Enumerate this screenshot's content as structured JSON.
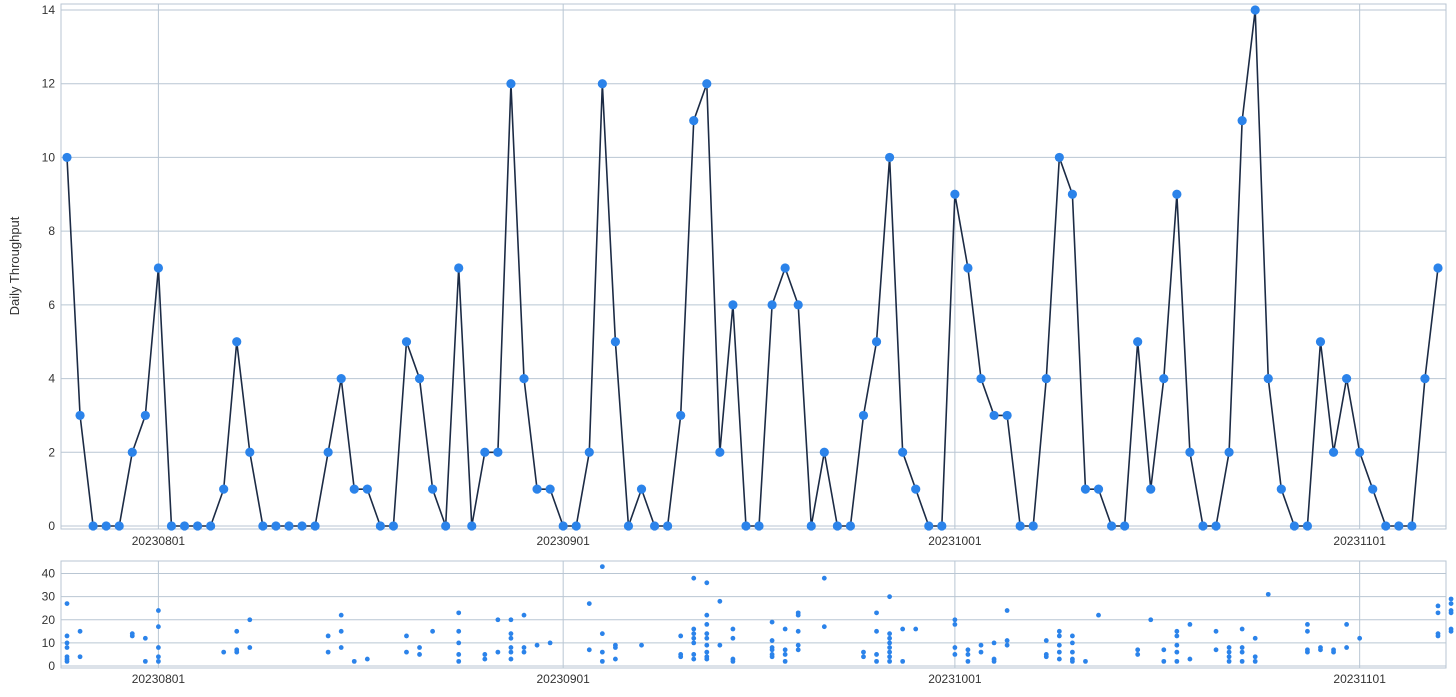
{
  "chart_data": [
    {
      "type": "line",
      "ylabel": "Daily Throughput",
      "xlabel": "",
      "ylim": [
        0,
        14
      ],
      "yticks": [
        0,
        2,
        4,
        6,
        8,
        10,
        12,
        14
      ],
      "xticks": [
        "20230801",
        "20230901",
        "20231001",
        "20231101"
      ],
      "grid": true,
      "x_start": "20230725",
      "x_end": "20231107",
      "series": [
        {
          "values": [
            10,
            3,
            0,
            0,
            0,
            2,
            3,
            7,
            0,
            0,
            0,
            0,
            1,
            5,
            2,
            0,
            0,
            0,
            0,
            0,
            2,
            4,
            1,
            1,
            0,
            0,
            5,
            4,
            1,
            0,
            7,
            0,
            2,
            2,
            12,
            4,
            1,
            1,
            0,
            0,
            2,
            12,
            5,
            0,
            1,
            0,
            0,
            3,
            11,
            12,
            2,
            6,
            0,
            0,
            6,
            7,
            6,
            0,
            2,
            0,
            0,
            3,
            5,
            10,
            2,
            1,
            0,
            0,
            9,
            7,
            4,
            3,
            3,
            0,
            0,
            4,
            10,
            9,
            1,
            1,
            0,
            0,
            5,
            1,
            4,
            9,
            2,
            0,
            0,
            2,
            11,
            14,
            4,
            1,
            0,
            0,
            5,
            2,
            4,
            2,
            1,
            0,
            0,
            0,
            4,
            7
          ]
        }
      ],
      "colors": {
        "line": "#1c2b45",
        "marker": "#2b83ea",
        "grid": "#b9c6d3"
      }
    },
    {
      "type": "scatter",
      "ylim": [
        0,
        45
      ],
      "yticks": [
        0,
        10,
        20,
        30,
        40
      ],
      "xticks": [
        "20230801",
        "20230901",
        "20231001",
        "20231101"
      ],
      "grid": true,
      "x_start": "20230725",
      "x_end": "20231107",
      "points": [
        [
          0,
          27
        ],
        [
          0,
          13
        ],
        [
          0,
          10
        ],
        [
          0,
          8
        ],
        [
          0,
          4
        ],
        [
          0,
          3
        ],
        [
          0,
          2
        ],
        [
          1,
          15
        ],
        [
          1,
          4
        ],
        [
          5,
          14
        ],
        [
          5,
          13
        ],
        [
          6,
          12
        ],
        [
          6,
          2
        ],
        [
          7,
          24
        ],
        [
          7,
          17
        ],
        [
          7,
          8
        ],
        [
          7,
          4
        ],
        [
          7,
          2
        ],
        [
          12,
          6
        ],
        [
          13,
          15
        ],
        [
          13,
          7
        ],
        [
          13,
          6
        ],
        [
          14,
          20
        ],
        [
          14,
          8
        ],
        [
          20,
          13
        ],
        [
          20,
          6
        ],
        [
          21,
          22
        ],
        [
          21,
          15
        ],
        [
          21,
          8
        ],
        [
          22,
          2
        ],
        [
          23,
          3
        ],
        [
          26,
          13
        ],
        [
          26,
          6
        ],
        [
          27,
          8
        ],
        [
          27,
          5
        ],
        [
          28,
          15
        ],
        [
          30,
          23
        ],
        [
          30,
          15
        ],
        [
          30,
          10
        ],
        [
          30,
          5
        ],
        [
          30,
          2
        ],
        [
          32,
          5
        ],
        [
          32,
          3
        ],
        [
          33,
          20
        ],
        [
          33,
          6
        ],
        [
          34,
          20
        ],
        [
          34,
          14
        ],
        [
          34,
          12
        ],
        [
          34,
          8
        ],
        [
          34,
          6
        ],
        [
          34,
          3
        ],
        [
          35,
          22
        ],
        [
          35,
          8
        ],
        [
          35,
          6
        ],
        [
          36,
          9
        ],
        [
          37,
          10
        ],
        [
          40,
          27
        ],
        [
          40,
          7
        ],
        [
          41,
          43
        ],
        [
          41,
          14
        ],
        [
          41,
          6
        ],
        [
          41,
          2
        ],
        [
          42,
          9
        ],
        [
          42,
          8
        ],
        [
          42,
          3
        ],
        [
          44,
          9
        ],
        [
          47,
          13
        ],
        [
          47,
          5
        ],
        [
          47,
          4
        ],
        [
          48,
          38
        ],
        [
          48,
          16
        ],
        [
          48,
          14
        ],
        [
          48,
          12
        ],
        [
          48,
          10
        ],
        [
          48,
          5
        ],
        [
          48,
          3
        ],
        [
          49,
          36
        ],
        [
          49,
          22
        ],
        [
          49,
          18
        ],
        [
          49,
          14
        ],
        [
          49,
          12
        ],
        [
          49,
          9
        ],
        [
          49,
          6
        ],
        [
          49,
          4
        ],
        [
          49,
          3
        ],
        [
          50,
          28
        ],
        [
          50,
          9
        ],
        [
          51,
          16
        ],
        [
          51,
          12
        ],
        [
          51,
          3
        ],
        [
          51,
          2
        ],
        [
          54,
          19
        ],
        [
          54,
          11
        ],
        [
          54,
          8
        ],
        [
          54,
          7
        ],
        [
          54,
          5
        ],
        [
          54,
          4
        ],
        [
          55,
          16
        ],
        [
          55,
          7
        ],
        [
          55,
          5
        ],
        [
          55,
          2
        ],
        [
          56,
          23
        ],
        [
          56,
          22
        ],
        [
          56,
          15
        ],
        [
          56,
          9
        ],
        [
          56,
          7
        ],
        [
          58,
          38
        ],
        [
          58,
          17
        ],
        [
          61,
          6
        ],
        [
          61,
          4
        ],
        [
          62,
          23
        ],
        [
          62,
          15
        ],
        [
          62,
          5
        ],
        [
          62,
          2
        ],
        [
          63,
          30
        ],
        [
          63,
          14
        ],
        [
          63,
          12
        ],
        [
          63,
          10
        ],
        [
          63,
          8
        ],
        [
          63,
          6
        ],
        [
          63,
          4
        ],
        [
          63,
          2
        ],
        [
          64,
          16
        ],
        [
          64,
          2
        ],
        [
          65,
          16
        ],
        [
          68,
          20
        ],
        [
          68,
          18
        ],
        [
          68,
          8
        ],
        [
          68,
          5
        ],
        [
          69,
          7
        ],
        [
          69,
          5
        ],
        [
          69,
          2
        ],
        [
          70,
          9
        ],
        [
          70,
          6
        ],
        [
          71,
          10
        ],
        [
          71,
          3
        ],
        [
          71,
          2
        ],
        [
          72,
          24
        ],
        [
          72,
          11
        ],
        [
          72,
          9
        ],
        [
          75,
          11
        ],
        [
          75,
          5
        ],
        [
          75,
          4
        ],
        [
          76,
          15
        ],
        [
          76,
          13
        ],
        [
          76,
          9
        ],
        [
          76,
          6
        ],
        [
          76,
          3
        ],
        [
          77,
          13
        ],
        [
          77,
          10
        ],
        [
          77,
          6
        ],
        [
          77,
          3
        ],
        [
          77,
          2
        ],
        [
          78,
          2
        ],
        [
          79,
          22
        ],
        [
          82,
          7
        ],
        [
          82,
          5
        ],
        [
          83,
          20
        ],
        [
          84,
          7
        ],
        [
          84,
          2
        ],
        [
          85,
          15
        ],
        [
          85,
          13
        ],
        [
          85,
          9
        ],
        [
          85,
          6
        ],
        [
          85,
          2
        ],
        [
          86,
          18
        ],
        [
          86,
          3
        ],
        [
          88,
          15
        ],
        [
          88,
          7
        ],
        [
          89,
          8
        ],
        [
          89,
          6
        ],
        [
          89,
          4
        ],
        [
          89,
          2
        ],
        [
          90,
          16
        ],
        [
          90,
          8
        ],
        [
          90,
          6
        ],
        [
          90,
          2
        ],
        [
          91,
          12
        ],
        [
          91,
          4
        ],
        [
          91,
          2
        ],
        [
          92,
          31
        ],
        [
          95,
          18
        ],
        [
          95,
          15
        ],
        [
          95,
          7
        ],
        [
          95,
          6
        ],
        [
          96,
          8
        ],
        [
          96,
          7
        ],
        [
          97,
          7
        ],
        [
          97,
          6
        ],
        [
          98,
          18
        ],
        [
          98,
          8
        ],
        [
          99,
          12
        ],
        [
          105,
          26
        ],
        [
          105,
          23
        ],
        [
          105,
          14
        ],
        [
          105,
          13
        ],
        [
          106,
          29
        ],
        [
          106,
          27
        ],
        [
          106,
          24
        ],
        [
          106,
          23
        ],
        [
          106,
          16
        ],
        [
          106,
          15
        ]
      ],
      "colors": {
        "marker": "#2b83ea",
        "grid": "#b9c6d3"
      }
    }
  ]
}
